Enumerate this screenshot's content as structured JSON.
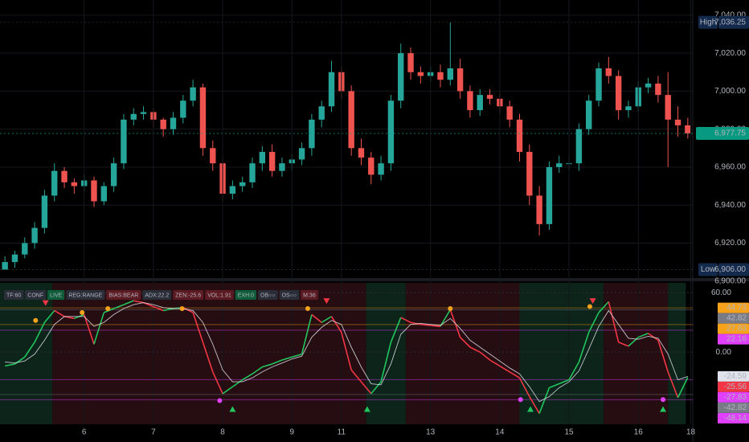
{
  "status_bar": [
    {
      "text": "TF:60",
      "color": "#2a2e39"
    },
    {
      "text": "CONF",
      "color": "#2a2e39"
    },
    {
      "text": "LIVE",
      "color": "#0f5c3a"
    },
    {
      "text": "REG:RANGE",
      "color": "#2a2e39"
    },
    {
      "text": "BIAS:BEAR",
      "color": "#5c1a22"
    },
    {
      "text": "ADX:22.2",
      "color": "#2a2e39"
    },
    {
      "text": "ZEN:-25.6",
      "color": "#5c1a22"
    },
    {
      "text": "VOL:1.91",
      "color": "#5c1a22"
    },
    {
      "text": "EXH:0",
      "color": "#0f5c3a"
    },
    {
      "text": "OB○○",
      "color": "#2a2e39"
    },
    {
      "text": "OS○○",
      "color": "#2a2e39"
    },
    {
      "text": "M:36",
      "color": "#5c1a22"
    }
  ],
  "chart_data": [
    {
      "type": "candlestick",
      "up_color": "#26a69a",
      "down_color": "#ef5350",
      "xlim": [
        0,
        70
      ],
      "ylim": [
        6902,
        7048
      ],
      "yticks": [
        {
          "value": 6900,
          "label": "6,900.00"
        },
        {
          "value": 6920,
          "label": "6,920.00"
        },
        {
          "value": 6940,
          "label": "6,940.00"
        },
        {
          "value": 6960,
          "label": "6,960.00"
        },
        {
          "value": 6980,
          "label": "6,980.00"
        },
        {
          "value": 7000,
          "label": "7,000.00"
        },
        {
          "value": 7020,
          "label": "7,020.00"
        },
        {
          "value": 7040,
          "label": "7,040.00"
        }
      ],
      "grid": true,
      "open": [
        6906,
        6910,
        6914,
        6920,
        6928,
        6945,
        6958,
        6952,
        6950,
        6953,
        6942,
        6950,
        6962,
        6985,
        6988,
        6989,
        6985,
        6980,
        6986,
        6995,
        7002,
        6970,
        6962,
        6946,
        6950,
        6952,
        6962,
        6968,
        6958,
        6962,
        6964,
        6970,
        6985,
        6992,
        7010,
        7000,
        6970,
        6965,
        6956,
        6962,
        6995,
        7020,
        7010,
        7008,
        7010,
        7006,
        7012,
        7000,
        6990,
        6998,
        6996,
        6992,
        6985,
        6968,
        6945,
        6930,
        6960,
        6962,
        6962,
        6980,
        6995,
        7012,
        7008,
        6990,
        6992,
        7002,
        7004,
        6998,
        6985,
        6982
      ],
      "high": [
        6913,
        6916,
        6923,
        6931,
        6948,
        6962,
        6960,
        6954,
        6956,
        6955,
        6952,
        6965,
        6988,
        6991,
        6992,
        6991,
        6986,
        6989,
        6998,
        7006,
        7004,
        6974,
        6965,
        6953,
        6955,
        6965,
        6971,
        6972,
        6965,
        6967,
        6973,
        6988,
        6995,
        7016,
        7013,
        7003,
        6975,
        6968,
        6966,
        6998,
        7025,
        7023,
        7013,
        7013,
        7014,
        7036.25,
        7017,
        7003,
        7001,
        7001,
        6999,
        6995,
        6988,
        6972,
        6950,
        6963,
        6966,
        6966,
        6983,
        6998,
        7015,
        7018,
        7011,
        6995,
        7005,
        7007,
        7008,
        7010,
        6992,
        6986
      ],
      "low": [
        6906,
        6907,
        6912,
        6917,
        6925,
        6942,
        6949,
        6946,
        6947,
        6939,
        6940,
        6947,
        6959,
        6982,
        6985,
        6981,
        6976,
        6977,
        6983,
        6992,
        6966,
        6958,
        6942,
        6943,
        6947,
        6949,
        6958,
        6955,
        6955,
        6958,
        6961,
        6966,
        6981,
        6989,
        6996,
        6966,
        6961,
        6951,
        6953,
        6958,
        6991,
        7006,
        7004,
        7005,
        7002,
        7003,
        6996,
        6986,
        6987,
        6993,
        6988,
        6981,
        6963,
        6940,
        6924,
        6927,
        6957,
        6958,
        6958,
        6977,
        6992,
        7004,
        6985,
        6986,
        6989,
        6999,
        6994,
        6960,
        6976,
        6975
      ],
      "close": [
        6910,
        6914,
        6920,
        6928,
        6945,
        6958,
        6952,
        6950,
        6953,
        6942,
        6950,
        6962,
        6985,
        6988,
        6989,
        6985,
        6980,
        6986,
        6995,
        7002,
        6970,
        6962,
        6946,
        6950,
        6952,
        6962,
        6968,
        6958,
        6962,
        6964,
        6970,
        6985,
        6992,
        7010,
        7000,
        6970,
        6965,
        6956,
        6962,
        6995,
        7020,
        7010,
        7008,
        7010,
        7006,
        7012,
        7000,
        6990,
        6998,
        6996,
        6992,
        6985,
        6968,
        6945,
        6930,
        6960,
        6962,
        6962,
        6980,
        6995,
        7012,
        7008,
        6990,
        6992,
        7002,
        7004,
        6998,
        6985,
        6982,
        6977.75
      ],
      "price_labels": [
        {
          "name": "High",
          "value": 7036.25,
          "label": "7,036.25",
          "color": "#132a4d"
        },
        {
          "name": "Low",
          "value": 6906,
          "label": "6,906.00",
          "color": "#132a4d"
        },
        {
          "value": 6977.75,
          "label": "6,977.75",
          "color": "#089981"
        }
      ]
    },
    {
      "type": "line",
      "xlim": [
        0,
        70
      ],
      "ylim": [
        -73,
        70
      ],
      "yticks": [
        {
          "value": 60,
          "label": "60.00"
        },
        {
          "value": 0,
          "label": "0.00"
        }
      ],
      "xticks": [
        {
          "value": 8.5,
          "label": "6"
        },
        {
          "value": 15.5,
          "label": "7"
        },
        {
          "value": 22.5,
          "label": "8"
        },
        {
          "value": 29.5,
          "label": "9"
        },
        {
          "value": 34.5,
          "label": "11"
        },
        {
          "value": 43.5,
          "label": "13"
        },
        {
          "value": 50.5,
          "label": "14"
        },
        {
          "value": 57.5,
          "label": "15"
        },
        {
          "value": 64.5,
          "label": "16"
        },
        {
          "value": 69.8,
          "label": "18"
        }
      ],
      "zones": [
        {
          "start": 0,
          "end": 5.3,
          "color": "#0c2419"
        },
        {
          "start": 5.3,
          "end": 37,
          "color": "#260d11"
        },
        {
          "start": 37,
          "end": 41,
          "color": "#0c2419"
        },
        {
          "start": 41,
          "end": 52.5,
          "color": "#260d11"
        },
        {
          "start": 52.5,
          "end": 61,
          "color": "#0c2419"
        },
        {
          "start": 61,
          "end": 67.5,
          "color": "#260d11"
        },
        {
          "start": 67.5,
          "end": 69.3,
          "color": "#0c2419"
        }
      ],
      "levels": [
        {
          "value": 44.73,
          "color": "#f7a21b"
        },
        {
          "value": 42.82,
          "color": "#787b86"
        },
        {
          "value": 27.83,
          "color": "#f7a21b"
        },
        {
          "value": 22.16,
          "color": "#e040fb"
        },
        {
          "value": -27.83,
          "color": "#e040fb"
        },
        {
          "value": -42.82,
          "color": "#787b86"
        },
        {
          "value": -48.14,
          "color": "#e040fb"
        }
      ],
      "series": [
        {
          "color": "#22c55e",
          "down_color": "#f23645",
          "values": [
            -14,
            -12,
            -5,
            10,
            30,
            42,
            36,
            34,
            38,
            8,
            40,
            44,
            48,
            52,
            50,
            46,
            42,
            44,
            45,
            40,
            10,
            -20,
            -42,
            -35,
            -28,
            -22,
            -15,
            -12,
            -8,
            -5,
            -2,
            38,
            30,
            36,
            20,
            -18,
            -30,
            -42,
            -30,
            10,
            35,
            30,
            28,
            27,
            26,
            43,
            15,
            5,
            0,
            -8,
            -14,
            -20,
            -26,
            -45,
            -62,
            -36,
            -32,
            -28,
            -10,
            20,
            40,
            51,
            10,
            6,
            15,
            19,
            12,
            -20,
            -46,
            -25.56
          ]
        },
        {
          "color": "#e0e3eb",
          "values": [
            -10,
            -11,
            -9,
            -2,
            12,
            28,
            36,
            36,
            36,
            26,
            30,
            38,
            44,
            48,
            50,
            48,
            45,
            44,
            44,
            42,
            30,
            8,
            -18,
            -30,
            -30,
            -26,
            -20,
            -15,
            -11,
            -7,
            -4,
            15,
            25,
            32,
            28,
            5,
            -15,
            -32,
            -33,
            -12,
            18,
            28,
            29,
            28,
            27,
            34,
            24,
            12,
            5,
            -2,
            -9,
            -16,
            -22,
            -35,
            -50,
            -45,
            -36,
            -30,
            -19,
            3,
            26,
            42,
            28,
            14,
            13,
            16,
            14,
            -2,
            -28,
            -24.59
          ]
        }
      ],
      "markers": [
        {
          "x": 3.6,
          "y": 32,
          "color": "#f7a21b",
          "shape": "circle"
        },
        {
          "x": 8.3,
          "y": 40,
          "color": "#f7a21b",
          "shape": "circle"
        },
        {
          "x": 10.9,
          "y": 44,
          "color": "#f7a21b",
          "shape": "circle"
        },
        {
          "x": 18.4,
          "y": 44,
          "color": "#f7a21b",
          "shape": "circle"
        },
        {
          "x": 31.1,
          "y": 44,
          "color": "#f7a21b",
          "shape": "circle"
        },
        {
          "x": 45.5,
          "y": 44,
          "color": "#f7a21b",
          "shape": "circle"
        },
        {
          "x": 59.6,
          "y": 46,
          "color": "#f7a21b",
          "shape": "circle"
        },
        {
          "x": 4.6,
          "y": 50,
          "color": "#f23645",
          "shape": "down"
        },
        {
          "x": 33.0,
          "y": 52,
          "color": "#f23645",
          "shape": "down"
        },
        {
          "x": 59.9,
          "y": 52,
          "color": "#f23645",
          "shape": "down"
        },
        {
          "x": 22.2,
          "y": -49,
          "color": "#e040fb",
          "shape": "circle"
        },
        {
          "x": 52.6,
          "y": -48,
          "color": "#e040fb",
          "shape": "circle"
        },
        {
          "x": 67.0,
          "y": -48,
          "color": "#e040fb",
          "shape": "circle"
        },
        {
          "x": 23.5,
          "y": -58,
          "color": "#22c55e",
          "shape": "up"
        },
        {
          "x": 37.1,
          "y": -58,
          "color": "#22c55e",
          "shape": "up"
        },
        {
          "x": 53.6,
          "y": -58,
          "color": "#22c55e",
          "shape": "up"
        },
        {
          "x": 67.0,
          "y": -58,
          "color": "#22c55e",
          "shape": "up"
        }
      ]
    }
  ]
}
